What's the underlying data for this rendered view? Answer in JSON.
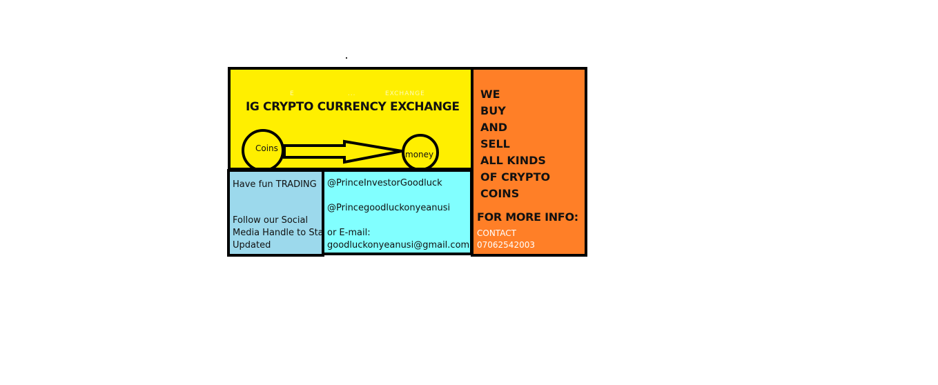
{
  "header": {
    "faint_text": "E                    ...           EXCHANGE",
    "title": "IG CRYPTO CURRENCY EXCHANGE"
  },
  "diagram": {
    "from_label": "Coins",
    "to_label": "money"
  },
  "left_box": {
    "line1": "Have fun TRADING",
    "line2": "Follow our Social",
    "line3": "Media Handle to Stay",
    "line4": "Updated"
  },
  "middle_box": {
    "handle1": "@PrinceInvestorGoodluck",
    "handle2": "@Princegoodluckonyeanusi",
    "email_label": "or E-mail:",
    "email": "goodluckonyeanusi@gmail.com"
  },
  "right_box": {
    "slogan": "WE\nBUY\nAND\nSELL\nALL KINDS\nOF CRYPTO\nCOINS",
    "info_heading": "FOR MORE INFO:",
    "contact": "CONTACT\n07062542003"
  },
  "colors": {
    "yellow": "#ffef00",
    "light_blue": "#9cd9ec",
    "cyan": "#81ffff",
    "orange": "#ff7f27",
    "border": "#000000"
  }
}
